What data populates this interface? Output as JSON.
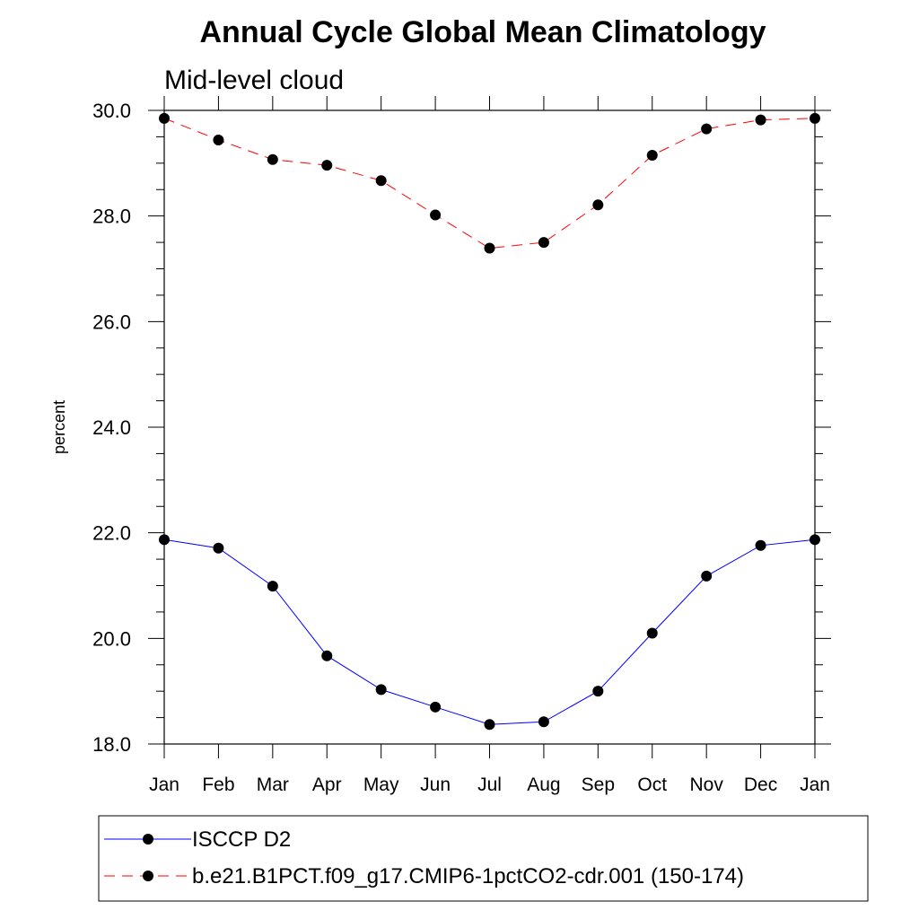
{
  "chart_data": {
    "type": "line",
    "title": "Annual Cycle Global Mean Climatology",
    "subtitle": "Mid-level cloud",
    "xlabel": "",
    "ylabel": "percent",
    "categories": [
      "Jan",
      "Feb",
      "Mar",
      "Apr",
      "May",
      "Jun",
      "Jul",
      "Aug",
      "Sep",
      "Oct",
      "Nov",
      "Dec",
      "Jan"
    ],
    "yticks": [
      "18.0",
      "20.0",
      "22.0",
      "24.0",
      "26.0",
      "28.0",
      "30.0"
    ],
    "ylim": [
      18,
      30
    ],
    "grid": false,
    "legend_placement": "bottom",
    "series": [
      {
        "name": "ISCCP D2",
        "color": "#0000ff",
        "line_style": "solid",
        "marker": "filled-circle",
        "values": [
          21.87,
          21.71,
          20.99,
          19.67,
          19.03,
          18.7,
          18.37,
          18.42,
          19.0,
          20.1,
          21.18,
          21.76,
          21.87
        ]
      },
      {
        "name": "b.e21.B1PCT.f09_g17.CMIP6-1pctCO2-cdr.001 (150-174)",
        "color": "#ff0000",
        "line_style": "dashed",
        "marker": "filled-circle",
        "values": [
          29.85,
          29.44,
          29.07,
          28.96,
          28.67,
          28.02,
          27.39,
          27.5,
          28.21,
          29.15,
          29.65,
          29.82,
          29.85
        ]
      }
    ]
  }
}
